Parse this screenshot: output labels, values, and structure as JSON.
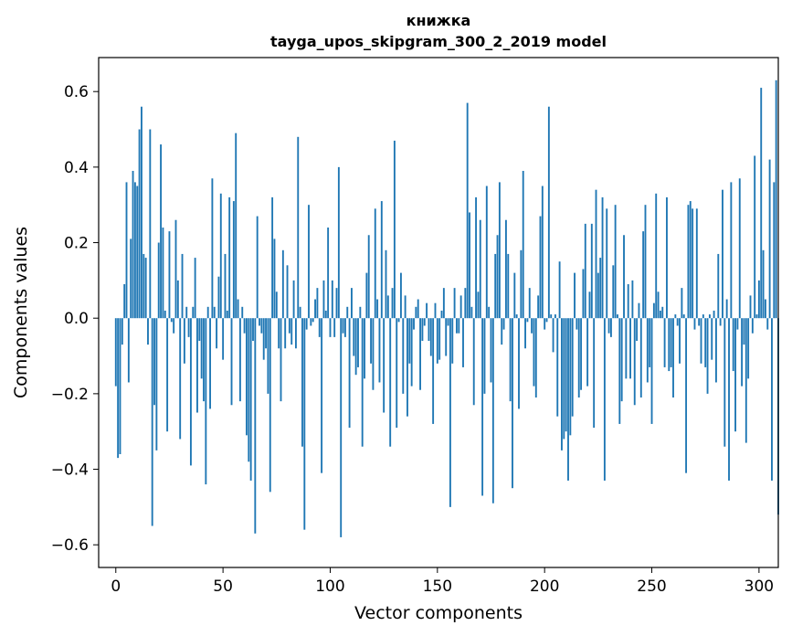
{
  "chart_data": {
    "type": "bar",
    "title": "книжка",
    "subtitle": "tayga_upos_skipgram_300_2_2019 model",
    "xlabel": "Vector components",
    "ylabel": "Components values",
    "xlim": [
      -8,
      309
    ],
    "ylim": [
      -0.66,
      0.69
    ],
    "x_ticks": [
      0,
      50,
      100,
      150,
      200,
      250,
      300
    ],
    "x_tick_labels": [
      "0",
      "50",
      "100",
      "150",
      "200",
      "250",
      "300"
    ],
    "y_ticks": [
      -0.6,
      -0.4,
      -0.2,
      0.0,
      0.2,
      0.4,
      0.6
    ],
    "y_tick_labels": [
      "−0.6",
      "−0.4",
      "−0.2",
      "0.0",
      "0.2",
      "0.4",
      "0.6"
    ],
    "bar_color": "#1f77b4",
    "grid": false,
    "values": [
      -0.18,
      -0.37,
      -0.36,
      -0.07,
      0.09,
      0.36,
      -0.17,
      0.21,
      0.39,
      0.36,
      0.35,
      0.5,
      0.56,
      0.17,
      0.16,
      -0.07,
      0.5,
      -0.55,
      -0.23,
      -0.35,
      0.2,
      0.46,
      0.24,
      0.02,
      -0.3,
      0.23,
      -0.01,
      -0.04,
      0.26,
      0.1,
      -0.32,
      0.17,
      -0.12,
      0.03,
      -0.05,
      -0.39,
      0.03,
      0.16,
      -0.25,
      -0.06,
      -0.16,
      -0.22,
      -0.44,
      0.03,
      -0.24,
      0.37,
      0.03,
      -0.08,
      0.11,
      0.33,
      -0.11,
      0.17,
      0.02,
      0.32,
      -0.23,
      0.31,
      0.49,
      0.05,
      -0.22,
      0.03,
      -0.04,
      -0.31,
      -0.38,
      -0.43,
      -0.06,
      -0.57,
      0.27,
      -0.02,
      -0.04,
      -0.11,
      -0.08,
      -0.2,
      -0.46,
      0.32,
      0.21,
      0.07,
      -0.08,
      -0.22,
      0.18,
      -0.08,
      0.14,
      -0.04,
      -0.07,
      0.1,
      -0.08,
      0.48,
      0.03,
      -0.34,
      -0.56,
      -0.03,
      0.3,
      -0.02,
      -0.01,
      0.05,
      0.08,
      -0.05,
      -0.41,
      0.1,
      0.02,
      0.24,
      -0.05,
      0.1,
      -0.05,
      0.08,
      0.4,
      -0.58,
      -0.04,
      -0.05,
      0.03,
      -0.29,
      0.08,
      -0.1,
      -0.15,
      -0.13,
      0.03,
      -0.34,
      -0.16,
      0.12,
      0.22,
      -0.12,
      -0.19,
      0.29,
      0.05,
      -0.17,
      0.31,
      -0.25,
      0.18,
      0.06,
      -0.34,
      0.08,
      0.47,
      -0.29,
      -0.01,
      0.12,
      -0.2,
      0.06,
      -0.26,
      -0.12,
      -0.18,
      -0.03,
      0.03,
      0.05,
      -0.19,
      -0.06,
      -0.02,
      0.04,
      -0.06,
      -0.1,
      -0.28,
      0.04,
      -0.12,
      -0.11,
      0.02,
      0.08,
      -0.1,
      -0.02,
      -0.5,
      -0.12,
      0.08,
      -0.04,
      -0.04,
      0.06,
      -0.13,
      0.08,
      0.57,
      0.28,
      0.03,
      -0.23,
      0.32,
      0.07,
      0.26,
      -0.47,
      -0.2,
      0.35,
      0.03,
      -0.17,
      -0.49,
      0.17,
      0.22,
      0.36,
      -0.07,
      -0.03,
      0.26,
      0.17,
      -0.22,
      -0.45,
      0.12,
      0.01,
      -0.24,
      0.18,
      0.39,
      -0.08,
      -0.01,
      0.08,
      -0.04,
      -0.18,
      -0.21,
      0.06,
      0.27,
      0.35,
      -0.03,
      -0.01,
      0.56,
      0.01,
      -0.09,
      0.01,
      -0.26,
      0.15,
      -0.35,
      -0.32,
      -0.3,
      -0.43,
      -0.31,
      -0.26,
      0.12,
      -0.03,
      -0.21,
      -0.19,
      0.13,
      0.25,
      -0.18,
      0.07,
      0.25,
      -0.29,
      0.34,
      0.12,
      0.16,
      0.32,
      -0.43,
      0.29,
      -0.04,
      -0.05,
      0.14,
      0.3,
      0.01,
      -0.28,
      -0.22,
      0.22,
      -0.16,
      0.09,
      -0.16,
      0.1,
      -0.23,
      -0.06,
      0.04,
      -0.21,
      0.23,
      0.3,
      -0.17,
      -0.13,
      -0.28,
      0.04,
      0.33,
      0.07,
      0.02,
      0.03,
      -0.13,
      0.32,
      -0.14,
      -0.13,
      -0.21,
      0.01,
      -0.02,
      -0.12,
      0.08,
      0.01,
      -0.41,
      0.3,
      0.31,
      0.29,
      -0.03,
      0.29,
      -0.02,
      -0.12,
      0.01,
      -0.13,
      -0.2,
      0.01,
      -0.11,
      0.02,
      -0.17,
      0.17,
      -0.02,
      0.34,
      -0.34,
      0.05,
      -0.43,
      0.36,
      -0.14,
      -0.3,
      -0.03,
      0.37,
      -0.18,
      -0.07,
      -0.33,
      -0.16,
      0.06,
      -0.04,
      0.43,
      0.01,
      0.1,
      0.61,
      0.18,
      0.05,
      -0.03,
      0.42,
      -0.43,
      0.36,
      0.63,
      -0.52
    ]
  }
}
